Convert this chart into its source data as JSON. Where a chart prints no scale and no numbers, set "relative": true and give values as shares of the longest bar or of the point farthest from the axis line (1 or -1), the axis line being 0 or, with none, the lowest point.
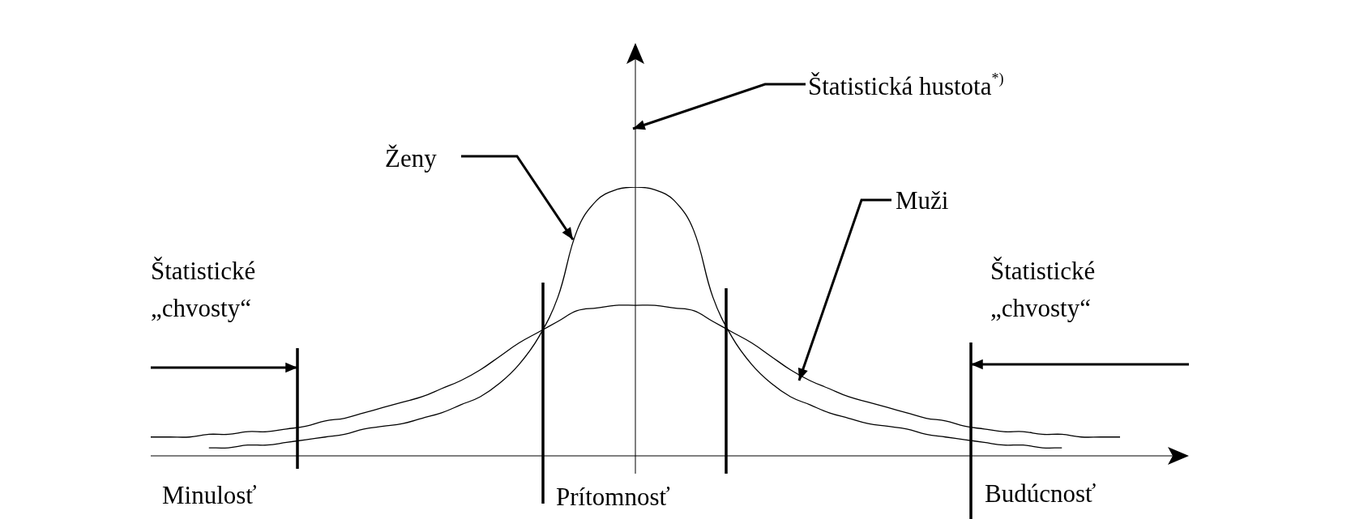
{
  "chart_data": {
    "type": "line",
    "relative": true,
    "legend": false,
    "marker": "none",
    "line_style": "solid",
    "categories": [
      null,
      null,
      null,
      null,
      null,
      null,
      null,
      null,
      null,
      null,
      null,
      null,
      null,
      null,
      null,
      null,
      null,
      null,
      null,
      null,
      null,
      null,
      null,
      null,
      null,
      null,
      null,
      null,
      null,
      null,
      null,
      null,
      null,
      null,
      null,
      null,
      null,
      null,
      null,
      null,
      null,
      null,
      null,
      null,
      null,
      null,
      null,
      null,
      null,
      null,
      null
    ],
    "series": [
      {
        "name": "Ženy",
        "color": "#000000",
        "values": [
          null,
          null,
          null,
          0.03,
          0.03,
          0.04,
          0.04,
          0.05,
          0.06,
          0.07,
          0.08,
          0.1,
          0.11,
          0.12,
          0.14,
          0.16,
          0.19,
          0.22,
          0.27,
          0.34,
          0.44,
          0.59,
          0.84,
          0.95,
          0.99,
          1,
          0.99,
          0.95,
          0.84,
          0.59,
          0.44,
          0.34,
          0.27,
          0.22,
          0.19,
          0.16,
          0.14,
          0.12,
          0.11,
          0.1,
          0.08,
          0.07,
          0.06,
          0.05,
          0.04,
          0.04,
          0.03,
          0.03,
          null,
          null,
          null
        ]
      },
      {
        "name": "Muži",
        "color": "#000000",
        "values": [
          0.07,
          0.07,
          0.07,
          0.08,
          0.08,
          0.09,
          0.09,
          0.1,
          0.11,
          0.13,
          0.14,
          0.16,
          0.18,
          0.2,
          0.22,
          0.25,
          0.28,
          0.32,
          0.37,
          0.42,
          0.46,
          0.5,
          0.54,
          0.55,
          0.56,
          0.56,
          0.56,
          0.55,
          0.54,
          0.5,
          0.46,
          0.42,
          0.37,
          0.32,
          0.28,
          0.25,
          0.22,
          0.2,
          0.18,
          0.16,
          0.14,
          0.13,
          0.11,
          0.1,
          0.09,
          0.09,
          0.08,
          0.08,
          0.07,
          0.07,
          0.07
        ]
      }
    ],
    "annotations": [
      "Štatistická hustota$^{*)}$",
      "Štatistické „chvosty“",
      "Štatistické „chvosty“",
      "Minulosť",
      "Prítomnosť",
      "Budúcnosť"
    ]
  }
}
